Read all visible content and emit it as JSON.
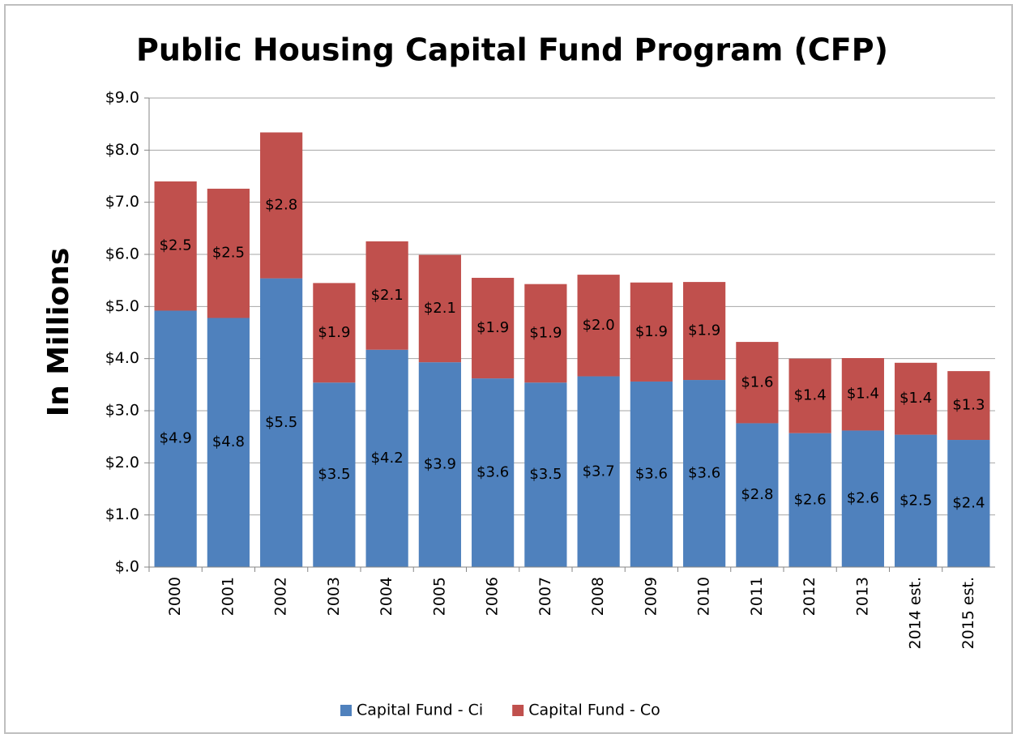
{
  "chart_data": {
    "type": "stacked_bar",
    "title": "Public Housing Capital Fund Program (CFP)",
    "y_label": "In Millions",
    "categories": [
      "2000",
      "2001",
      "2002",
      "2003",
      "2004",
      "2005",
      "2006",
      "2007",
      "2008",
      "2009",
      "2010",
      "2011",
      "2012",
      "2013",
      "2014 est.",
      "2015 est."
    ],
    "series": [
      {
        "name": "Capital Fund - Ci",
        "color": "#4f81bd",
        "values": [
          4.92,
          4.78,
          5.54,
          3.54,
          4.17,
          3.93,
          3.62,
          3.54,
          3.66,
          3.56,
          3.59,
          2.76,
          2.57,
          2.62,
          2.54,
          2.44
        ],
        "value_labels": [
          "$4.9",
          "$4.8",
          "$5.5",
          "$3.5",
          "$4.2",
          "$3.9",
          "$3.6",
          "$3.5",
          "$3.7",
          "$3.6",
          "$3.6",
          "$2.8",
          "$2.6",
          "$2.6",
          "$2.5",
          "$2.4"
        ]
      },
      {
        "name": "Capital Fund - Co",
        "color": "#c0504d",
        "values": [
          2.48,
          2.48,
          2.8,
          1.91,
          2.08,
          2.06,
          1.93,
          1.89,
          1.95,
          1.9,
          1.88,
          1.56,
          1.43,
          1.39,
          1.38,
          1.32
        ],
        "value_labels": [
          "$2.5",
          "$2.5",
          "$2.8",
          "$1.9",
          "$2.1",
          "$2.1",
          "$1.9",
          "$1.9",
          "$2.0",
          "$1.9",
          "$1.9",
          "$1.6",
          "$1.4",
          "$1.4",
          "$1.4",
          "$1.3"
        ]
      }
    ],
    "ylim": [
      0,
      9
    ],
    "yticks": [
      {
        "value": 0,
        "label": "$.0"
      },
      {
        "value": 1,
        "label": "$1.0"
      },
      {
        "value": 2,
        "label": "$2.0"
      },
      {
        "value": 3,
        "label": "$3.0"
      },
      {
        "value": 4,
        "label": "$4.0"
      },
      {
        "value": 5,
        "label": "$5.0"
      },
      {
        "value": 6,
        "label": "$6.0"
      },
      {
        "value": 7,
        "label": "$7.0"
      },
      {
        "value": 8,
        "label": "$8.0"
      },
      {
        "value": 9,
        "label": "$9.0"
      }
    ],
    "grid": true,
    "legend": "bottom"
  }
}
